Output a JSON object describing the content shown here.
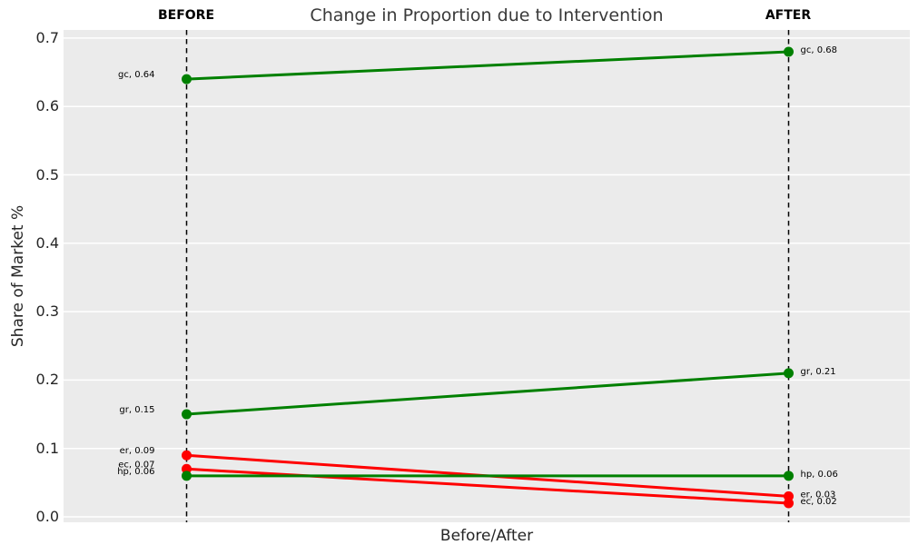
{
  "figure": {
    "title": "Change in Proportion due to Intervention",
    "before_header": "BEFORE",
    "after_header": "AFTER"
  },
  "chart_data": {
    "type": "line",
    "subtype": "slope-chart",
    "title": "Change in Proportion due to Intervention",
    "xlabel": "Before/After",
    "ylabel": "Share of Market %",
    "categories": [
      "BEFORE",
      "AFTER"
    ],
    "yticks": [
      0.0,
      0.1,
      0.2,
      0.3,
      0.4,
      0.5,
      0.6,
      0.7
    ],
    "ylim": [
      -0.012,
      0.712
    ],
    "grid": true,
    "legend": "none",
    "plot_bg_color": "#ebebeb",
    "grid_color": "#ffffff",
    "marker_line_color": "#000000",
    "palette": {
      "green": "#008000",
      "red": "#ff0000"
    },
    "series": [
      {
        "name": "gc",
        "color": "green",
        "values": [
          0.64,
          0.68
        ],
        "labels": [
          "gc, 0.64",
          "gc, 0.68"
        ]
      },
      {
        "name": "gr",
        "color": "green",
        "values": [
          0.15,
          0.21
        ],
        "labels": [
          "gr, 0.15",
          "gr, 0.21"
        ]
      },
      {
        "name": "er",
        "color": "red",
        "values": [
          0.09,
          0.03
        ],
        "labels": [
          "er, 0.09",
          "er, 0.03"
        ]
      },
      {
        "name": "ec",
        "color": "red",
        "values": [
          0.07,
          0.02
        ],
        "labels": [
          "ec, 0.07",
          "ec, 0.02"
        ]
      },
      {
        "name": "hp",
        "color": "green",
        "values": [
          0.06,
          0.06
        ],
        "labels": [
          "hp, 0.06",
          "hp, 0.06"
        ]
      }
    ]
  }
}
